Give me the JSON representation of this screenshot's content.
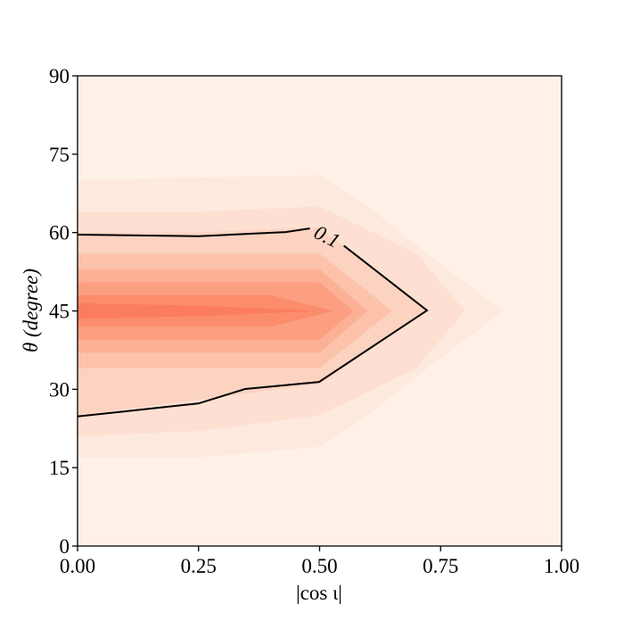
{
  "chart_data": {
    "type": "contour",
    "xlabel": "|cos ι|",
    "ylabel": "θ (degree)",
    "xlim": [
      0,
      1
    ],
    "ylim": [
      0,
      90
    ],
    "xticks": [
      {
        "value": 0,
        "label": "0.00"
      },
      {
        "value": 0.25,
        "label": "0.25"
      },
      {
        "value": 0.5,
        "label": "0.50"
      },
      {
        "value": 0.75,
        "label": "0.75"
      },
      {
        "value": 1,
        "label": "1.00"
      }
    ],
    "yticks": [
      0,
      15,
      30,
      45,
      60,
      75,
      90
    ],
    "background_color": "#fff0e8",
    "filled_levels": [
      {
        "level": 0.025,
        "color": "#fee9de",
        "x": [
          0,
          0.25,
          0.5,
          0.6,
          0.75,
          0.88,
          0.75,
          0.6,
          0.5,
          0.25,
          0
        ],
        "y": [
          70,
          70.5,
          71,
          65,
          54,
          45,
          36,
          25,
          19,
          17,
          17
        ]
      },
      {
        "level": 0.05,
        "color": "#fde0d2",
        "x": [
          0,
          0.25,
          0.5,
          0.7,
          0.8,
          0.7,
          0.5,
          0.25,
          0
        ],
        "y": [
          64,
          64,
          65,
          56,
          45,
          34,
          25,
          22,
          21
        ]
      },
      {
        "level": 0.1,
        "color": "#fcd3c1",
        "x": [
          0,
          0.25,
          0.5,
          0.72,
          0.5,
          0.25,
          0
        ],
        "y": [
          60,
          60,
          61,
          45,
          31,
          28,
          25
        ]
      },
      {
        "level": 0.2,
        "color": "#fcc2aa",
        "x": [
          0,
          0.25,
          0.5,
          0.65,
          0.5,
          0.25,
          0
        ],
        "y": [
          56,
          56,
          56,
          45,
          34,
          34,
          34
        ]
      },
      {
        "level": 0.3,
        "color": "#fcb196",
        "x": [
          0,
          0.5,
          0.6,
          0.5,
          0
        ],
        "y": [
          53,
          53,
          45,
          37,
          37
        ]
      },
      {
        "level": 0.4,
        "color": "#fc9f81",
        "x": [
          0,
          0.5,
          0.57,
          0.5,
          0
        ],
        "y": [
          50.5,
          50.5,
          45,
          39.5,
          39.5
        ]
      },
      {
        "level": 0.5,
        "color": "#fb8d6d",
        "x": [
          0,
          0.4,
          0.53,
          0.4,
          0
        ],
        "y": [
          48,
          48,
          45,
          42,
          42
        ]
      },
      {
        "level": 0.6,
        "color": "#fb7d5d",
        "x": [
          0,
          0.25,
          0.5,
          0.25,
          0
        ],
        "y": [
          46.5,
          46,
          45,
          44,
          43.5
        ]
      }
    ],
    "contour_lines": [
      {
        "level": 0.1,
        "color": "#000000",
        "x": [
          0,
          0.25,
          0.43,
          0.48,
          null,
          0.55,
          0.722,
          0.499,
          0.346,
          0.25,
          0
        ],
        "y": [
          59.6,
          59.3,
          60.1,
          60.8,
          null,
          57.5,
          45.1,
          31.4,
          30.05,
          27.3,
          24.8
        ]
      }
    ]
  }
}
